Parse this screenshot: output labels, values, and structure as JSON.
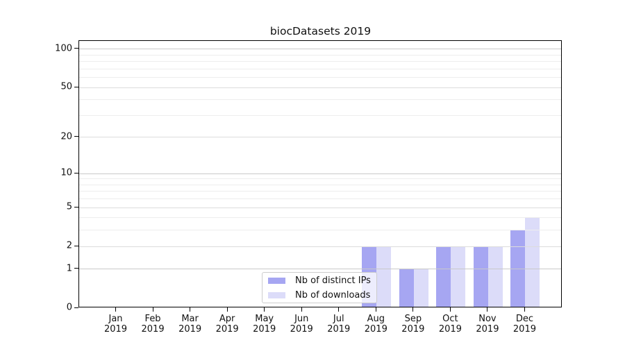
{
  "chart_data": {
    "type": "bar",
    "title": "biocDatasets 2019",
    "categories": [
      "Jan",
      "Feb",
      "Mar",
      "Apr",
      "May",
      "Jun",
      "Jul",
      "Aug",
      "Sep",
      "Oct",
      "Nov",
      "Dec"
    ],
    "x_year": "2019",
    "series": [
      {
        "name": "Nb of distinct IPs",
        "color": "#a6a6f2",
        "values": [
          0,
          0,
          0,
          0,
          0,
          0,
          0,
          2,
          1,
          2,
          2,
          3
        ]
      },
      {
        "name": "Nb of downloads",
        "color": "#dcdcf9",
        "values": [
          0,
          0,
          0,
          0,
          0,
          0,
          0,
          2,
          1,
          2,
          2,
          4
        ]
      }
    ],
    "xlabel": "",
    "ylabel": "",
    "y_scale": "log1p",
    "ylim": [
      0,
      116
    ],
    "y_ticks": [
      0,
      1,
      2,
      5,
      10,
      20,
      50,
      100
    ],
    "y_major_gridlines": [
      1,
      10,
      100
    ],
    "y_labeled_gridlines": [
      2,
      5,
      20,
      50
    ],
    "y_minor_gridlines": [
      3,
      4,
      6,
      7,
      8,
      9,
      30,
      40,
      60,
      70,
      80,
      90
    ],
    "grid": "horizontal",
    "legend_position": "lower center"
  },
  "grid_colors": {
    "major": "#c9c9c9",
    "labeled": "#dcdcdc",
    "minor": "#ededed"
  }
}
